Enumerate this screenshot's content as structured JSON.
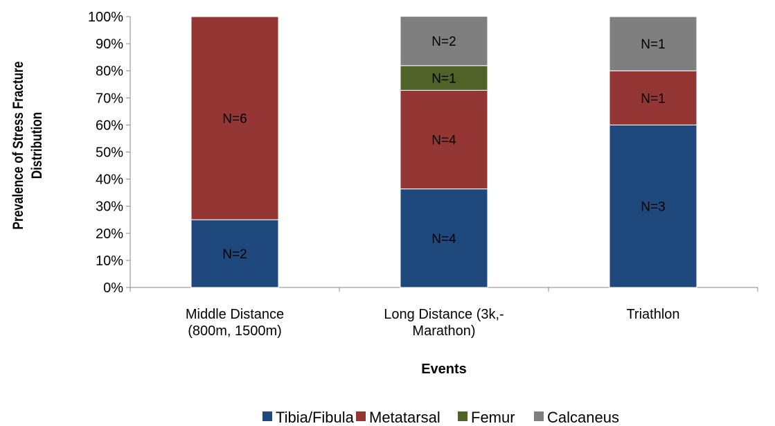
{
  "chart_data": {
    "type": "bar",
    "stacked": true,
    "xlabel": "Events",
    "ylabel_lines": [
      "Prevalence of Stress Fracture",
      "Distribution"
    ],
    "ylim": [
      0,
      100
    ],
    "yticks": [
      "0%",
      "10%",
      "20%",
      "30%",
      "40%",
      "50%",
      "60%",
      "70%",
      "80%",
      "90%",
      "100%"
    ],
    "categories": [
      [
        "Middle Distance",
        "(800m, 1500m)"
      ],
      [
        "Long Distance (3k,-",
        "Marathon)"
      ],
      [
        "Triathlon"
      ]
    ],
    "series": [
      {
        "name": "Tibia/Fibula",
        "color": "#1f497d",
        "values": [
          25,
          36.4,
          60
        ],
        "labels": [
          "N=2",
          "N=4",
          "N=3"
        ]
      },
      {
        "name": "Metatarsal",
        "color": "#943634",
        "values": [
          75,
          36.4,
          20
        ],
        "labels": [
          "N=6",
          "N=4",
          "N=1"
        ]
      },
      {
        "name": "Femur",
        "color": "#4f6228",
        "values": [
          0,
          9.1,
          0
        ],
        "labels": [
          "",
          "N=1",
          ""
        ]
      },
      {
        "name": "Calcaneus",
        "color": "#7f7f7f",
        "values": [
          0,
          18.2,
          20
        ],
        "labels": [
          "",
          "N=2",
          "N=1"
        ]
      }
    ],
    "legend_position": "bottom",
    "grid": false
  }
}
